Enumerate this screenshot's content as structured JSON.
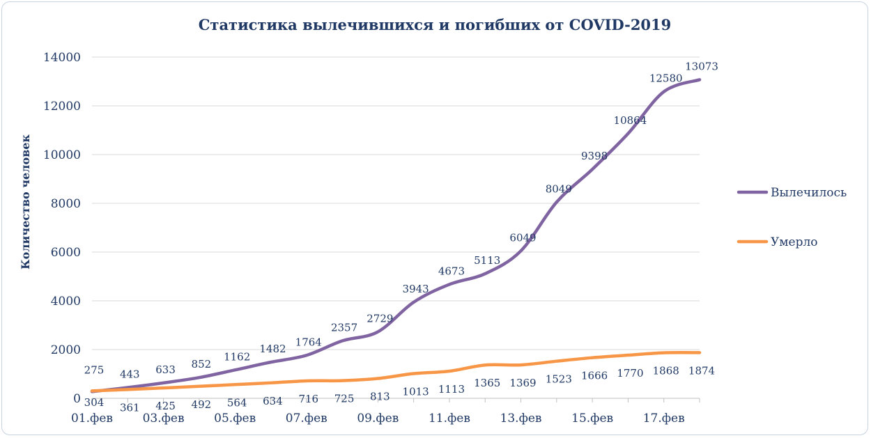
{
  "chart_data": {
    "type": "line",
    "title": "Статистика вылечившихся и погибших от  COVID-2019",
    "ylabel": "Количество человек",
    "xlabel": "",
    "ylim": [
      0,
      14000
    ],
    "yticks": [
      "0",
      "2000",
      "4000",
      "6000",
      "8000",
      "10000",
      "12000",
      "14000"
    ],
    "x": [
      "01.фев",
      "02.фев",
      "03.фев",
      "04.фев",
      "05.фев",
      "06.фев",
      "07.фев",
      "08.фев",
      "09.фев",
      "10.фев",
      "11.фев",
      "12.фев",
      "13.фев",
      "14.фев",
      "15.фев",
      "16.фев",
      "17.фев",
      "18.фев"
    ],
    "xticklabels": [
      "01.фев",
      "03.фев",
      "05.фев",
      "07.фев",
      "09.фев",
      "11.фев",
      "13.фев",
      "15.фев",
      "17.фев"
    ],
    "grid": true,
    "legend_position": "right",
    "series": [
      {
        "name": "Вылечилось",
        "color": "#8064a2",
        "values": [
          275,
          443,
          633,
          852,
          1162,
          1482,
          1764,
          2357,
          2729,
          3943,
          4673,
          5113,
          6049,
          8049,
          9398,
          10864,
          12580,
          13073
        ]
      },
      {
        "name": "Умерло",
        "color": "#f79646",
        "values": [
          304,
          361,
          425,
          492,
          564,
          634,
          716,
          725,
          813,
          1013,
          1113,
          1365,
          1369,
          1523,
          1666,
          1770,
          1868,
          1874
        ]
      }
    ]
  }
}
